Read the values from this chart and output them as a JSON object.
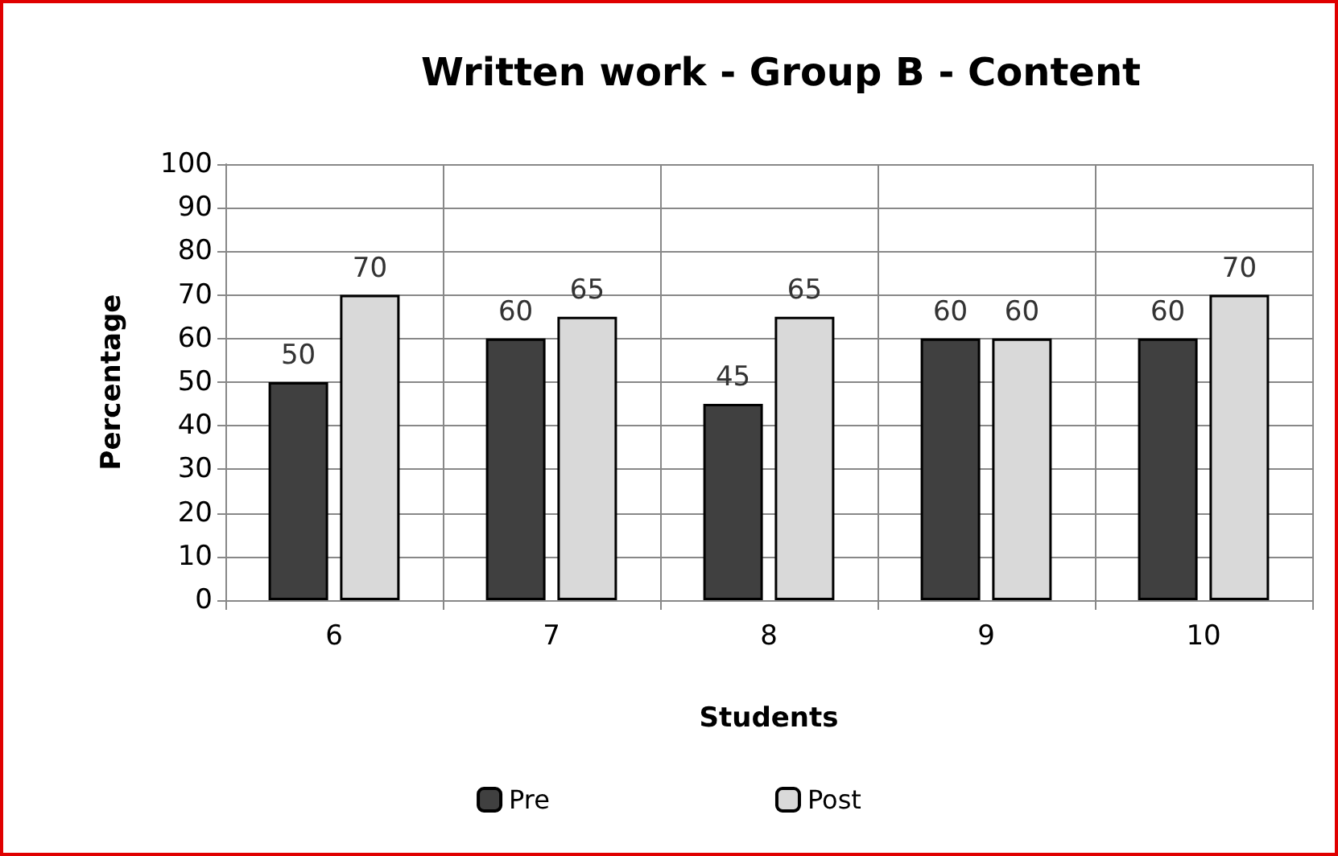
{
  "chart_data": {
    "type": "bar",
    "title": "Written work - Group B - Content",
    "xlabel": "Students",
    "ylabel": "Percentage",
    "categories": [
      "6",
      "7",
      "8",
      "9",
      "10"
    ],
    "series": [
      {
        "name": "Pre",
        "color": "#404040",
        "values": [
          50,
          60,
          45,
          60,
          60
        ]
      },
      {
        "name": "Post",
        "color": "#d9d9d9",
        "values": [
          70,
          65,
          65,
          60,
          70
        ]
      }
    ],
    "ylim": [
      0,
      100
    ],
    "yticks": [
      0,
      10,
      20,
      30,
      40,
      50,
      60,
      70,
      80,
      90,
      100
    ],
    "grid": true,
    "legend": "bottom",
    "data_labels": true
  }
}
